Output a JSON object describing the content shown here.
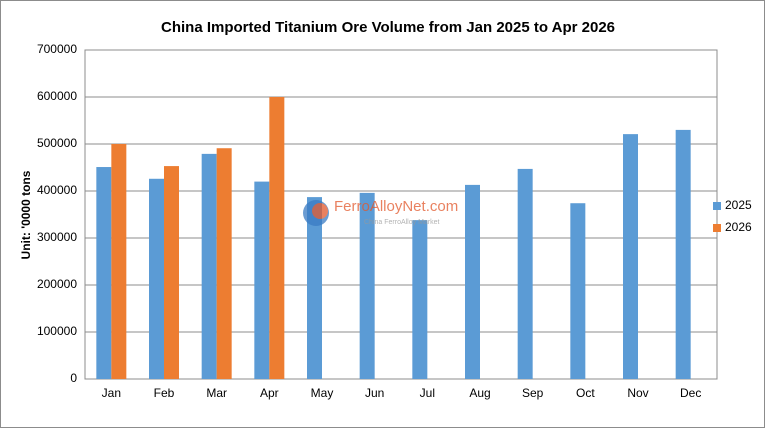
{
  "chart_data": {
    "type": "bar",
    "title": "China Imported Titanium Ore Volume from Jan 2025 to Apr 2026",
    "y_label": "Unit: '0000 tons",
    "categories": [
      "Jan",
      "Feb",
      "Mar",
      "Apr",
      "May",
      "Jun",
      "Jul",
      "Aug",
      "Sep",
      "Oct",
      "Nov",
      "Dec"
    ],
    "series": [
      {
        "name": "2025",
        "color": "#5b9bd5",
        "values": [
          451000,
          426000,
          479000,
          420000,
          387000,
          396000,
          338000,
          413000,
          447000,
          374000,
          521000,
          530000
        ]
      },
      {
        "name": "2026",
        "color": "#ed7d31",
        "values": [
          500000,
          453000,
          491000,
          600000,
          null,
          null,
          null,
          null,
          null,
          null,
          null,
          null
        ]
      }
    ],
    "ylim": [
      0,
      700000
    ],
    "yticks": [
      0,
      100000,
      200000,
      300000,
      400000,
      500000,
      600000,
      700000
    ],
    "grid": true,
    "legend": "right",
    "watermark": {
      "name": "FerroAlloyNet.com",
      "tagline": "China FerroAlloy Market"
    }
  }
}
